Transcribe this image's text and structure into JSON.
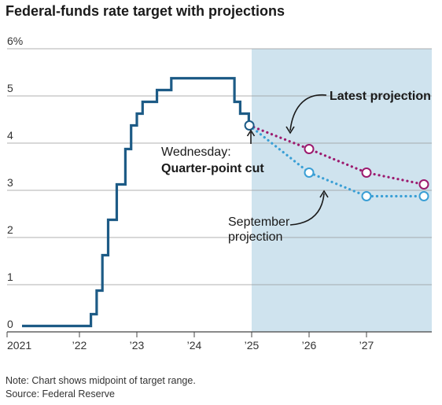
{
  "chart_data": {
    "type": "line",
    "title": "Federal-funds rate target with projections",
    "y_unit_label": "6%",
    "ylim": [
      0,
      6
    ],
    "xlim": [
      2021.0,
      2028.0
    ],
    "y_ticks": [
      {
        "value": 6,
        "label": "6%"
      },
      {
        "value": 5,
        "label": "5"
      },
      {
        "value": 4,
        "label": "4"
      },
      {
        "value": 3,
        "label": "3"
      },
      {
        "value": 2,
        "label": "2"
      },
      {
        "value": 1,
        "label": "1"
      },
      {
        "value": 0,
        "label": "0"
      }
    ],
    "x_ticks": [
      {
        "value": 2021,
        "label": "2021"
      },
      {
        "value": 2022,
        "label": "’22"
      },
      {
        "value": 2023,
        "label": "’23"
      },
      {
        "value": 2024,
        "label": "’24"
      },
      {
        "value": 2025,
        "label": "’25"
      },
      {
        "value": 2026,
        "label": "’26"
      },
      {
        "value": 2027,
        "label": "’27"
      }
    ],
    "grid": true,
    "projection_shading_start": 2025.0,
    "colors": {
      "actual": "#1d5b86",
      "latest": "#9c1a6e",
      "september": "#3a9fd5",
      "shading": "#cfe3ee",
      "grid": "#999999"
    },
    "series": [
      {
        "key": "actual",
        "style": "step",
        "x": [
          2021.0,
          2022.2,
          2022.3,
          2022.4,
          2022.5,
          2022.65,
          2022.8,
          2022.9,
          2023.0,
          2023.1,
          2023.35,
          2023.6,
          2024.7,
          2024.8,
          2024.95
        ],
        "values": [
          0.125,
          0.375,
          0.875,
          1.625,
          2.375,
          3.125,
          3.875,
          4.375,
          4.625,
          4.875,
          5.125,
          5.375,
          4.875,
          4.625,
          4.375
        ]
      },
      {
        "key": "latest",
        "name": "Latest projection",
        "style": "dotted",
        "x": [
          2024.96,
          2026.0,
          2027.0,
          2028.0
        ],
        "values": [
          4.375,
          3.875,
          3.375,
          3.125
        ]
      },
      {
        "key": "september",
        "name": "September projection",
        "style": "dotted",
        "x": [
          2024.96,
          2026.0,
          2027.0,
          2028.0
        ],
        "values": [
          4.375,
          3.375,
          2.875,
          2.875
        ]
      }
    ],
    "annotations": {
      "cut_line1": "Wednesday:",
      "cut_line2": "Quarter-point cut",
      "latest_label": "Latest projection",
      "september_line1": "September",
      "september_line2": "projection"
    },
    "note": "Note: Chart shows midpoint of target range.",
    "source": "Source: Federal Reserve"
  }
}
